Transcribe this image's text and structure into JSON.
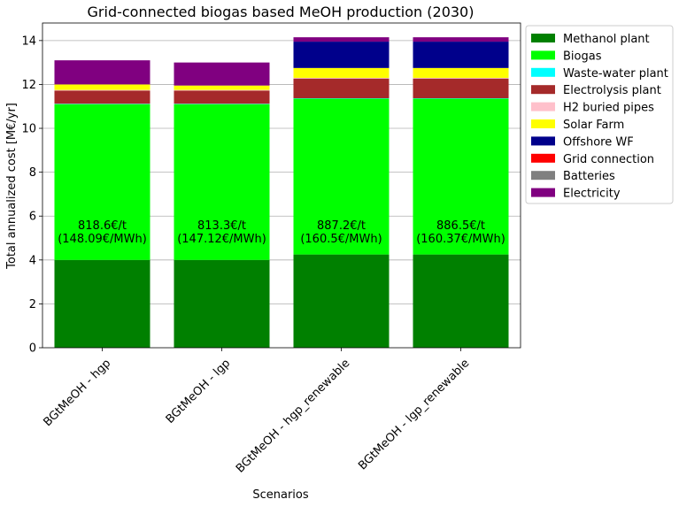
{
  "chart_data": {
    "type": "bar",
    "stacked": true,
    "title": "Grid-connected biogas based MeOH production (2030)",
    "xlabel": "Scenarios",
    "ylabel": "Total annualized cost [M€/yr]",
    "ylim": [
      0,
      14.8
    ],
    "yticks": [
      0,
      2,
      4,
      6,
      8,
      10,
      12,
      14
    ],
    "grid": "y",
    "legend": "outside-right",
    "categories": [
      "BGtMeOH - hgp",
      "BGtMeOH - lgp",
      "BGtMeOH - hgp_renewable",
      "BGtMeOH - lgp_renewable"
    ],
    "bar_labels": [
      [
        "818.6€/t",
        "(148.09€/MWh)"
      ],
      [
        "813.3€/t",
        "(147.12€/MWh)"
      ],
      [
        "887.2€/t",
        "(160.5€/MWh)"
      ],
      [
        "886.5€/t",
        "(160.37€/MWh)"
      ]
    ],
    "series": [
      {
        "name": "Methanol plant",
        "color": "#008000",
        "values": [
          4.0,
          4.0,
          4.25,
          4.25
        ]
      },
      {
        "name": "Biogas",
        "color": "#00ff00",
        "values": [
          7.1,
          7.1,
          7.1,
          7.1
        ]
      },
      {
        "name": "Waste-water plant",
        "color": "#00ffff",
        "values": [
          0.02,
          0.02,
          0.02,
          0.02
        ]
      },
      {
        "name": "Electrolysis plant",
        "color": "#a52a2a",
        "values": [
          0.6,
          0.6,
          0.9,
          0.9
        ]
      },
      {
        "name": "H2 buried pipes",
        "color": "#ffc0cb",
        "values": [
          0.03,
          0.03,
          0.03,
          0.03
        ]
      },
      {
        "name": "Solar Farm",
        "color": "#ffff00",
        "values": [
          0.25,
          0.2,
          0.45,
          0.45
        ]
      },
      {
        "name": "Offshore WF",
        "color": "#00008b",
        "values": [
          0,
          0,
          1.2,
          1.2
        ]
      },
      {
        "name": "Grid connection",
        "color": "#ff0000",
        "values": [
          0,
          0,
          0,
          0
        ]
      },
      {
        "name": "Batteries",
        "color": "#808080",
        "values": [
          0,
          0,
          0,
          0
        ]
      },
      {
        "name": "Electricity",
        "color": "#800080",
        "values": [
          1.1,
          1.05,
          0.2,
          0.2
        ]
      }
    ]
  }
}
